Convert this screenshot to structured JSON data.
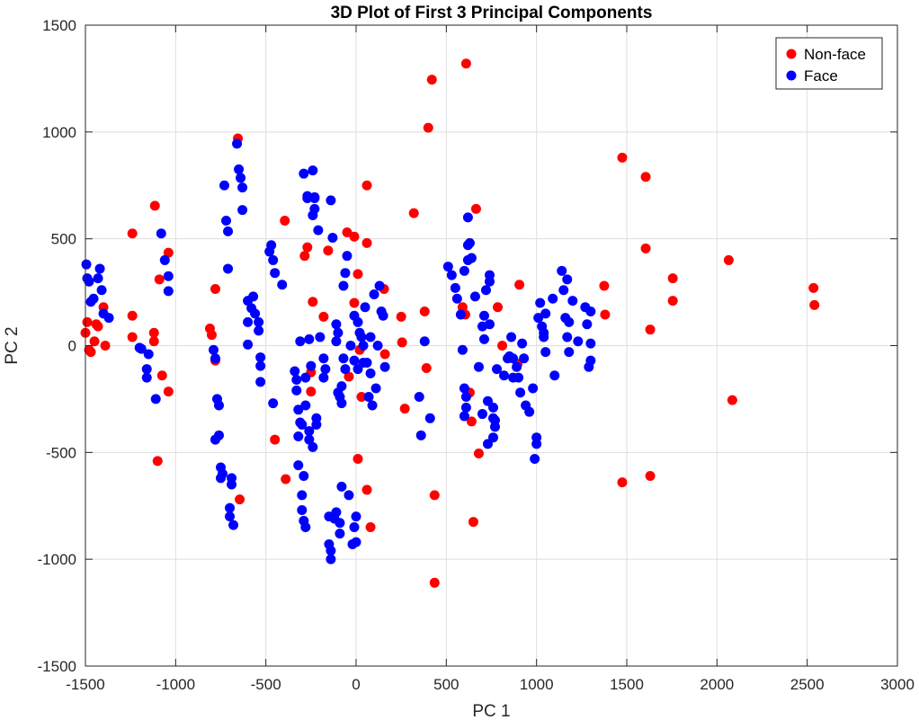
{
  "chart_data": {
    "type": "scatter",
    "title": "3D Plot of First 3 Principal Components",
    "xlabel": "PC 1",
    "ylabel": "PC 2",
    "xlim": [
      -1500,
      3000
    ],
    "ylim": [
      -1500,
      1500
    ],
    "xticks": [
      -1500,
      -1000,
      -500,
      0,
      500,
      1000,
      1500,
      2000,
      2500,
      3000
    ],
    "yticks": [
      -1500,
      -1000,
      -500,
      0,
      500,
      1000,
      1500
    ],
    "grid": true,
    "legend_position": "top-right",
    "series": [
      {
        "name": "Non-face",
        "color": "#ff0000",
        "points": [
          [
            -1500,
            60
          ],
          [
            -1490,
            110
          ],
          [
            -1480,
            -20
          ],
          [
            -1470,
            -30
          ],
          [
            -1450,
            20
          ],
          [
            -1440,
            100
          ],
          [
            -1430,
            90
          ],
          [
            -1400,
            180
          ],
          [
            -1390,
            0
          ],
          [
            -1240,
            525
          ],
          [
            -1240,
            140
          ],
          [
            -1240,
            40
          ],
          [
            -1115,
            655
          ],
          [
            -1120,
            60
          ],
          [
            -1120,
            20
          ],
          [
            -1100,
            -540
          ],
          [
            -1090,
            310
          ],
          [
            -1075,
            -140
          ],
          [
            -1040,
            435
          ],
          [
            -1040,
            -215
          ],
          [
            -810,
            80
          ],
          [
            -800,
            50
          ],
          [
            -780,
            265
          ],
          [
            -780,
            -70
          ],
          [
            -655,
            970
          ],
          [
            -645,
            -720
          ],
          [
            -450,
            -440
          ],
          [
            -395,
            585
          ],
          [
            -390,
            -625
          ],
          [
            -285,
            420
          ],
          [
            -270,
            460
          ],
          [
            -250,
            -125
          ],
          [
            -250,
            -215
          ],
          [
            -240,
            205
          ],
          [
            -180,
            135
          ],
          [
            -155,
            445
          ],
          [
            -50,
            530
          ],
          [
            -40,
            -145
          ],
          [
            -10,
            200
          ],
          [
            -10,
            510
          ],
          [
            10,
            335
          ],
          [
            10,
            -530
          ],
          [
            20,
            -20
          ],
          [
            30,
            -240
          ],
          [
            60,
            480
          ],
          [
            60,
            750
          ],
          [
            60,
            -675
          ],
          [
            80,
            -850
          ],
          [
            155,
            265
          ],
          [
            160,
            -40
          ],
          [
            250,
            135
          ],
          [
            255,
            15
          ],
          [
            270,
            -295
          ],
          [
            320,
            620
          ],
          [
            380,
            160
          ],
          [
            390,
            -105
          ],
          [
            400,
            1020
          ],
          [
            420,
            1245
          ],
          [
            435,
            -700
          ],
          [
            435,
            -1110
          ],
          [
            590,
            180
          ],
          [
            605,
            145
          ],
          [
            610,
            1320
          ],
          [
            630,
            -220
          ],
          [
            640,
            -355
          ],
          [
            650,
            -825
          ],
          [
            665,
            640
          ],
          [
            680,
            -505
          ],
          [
            785,
            180
          ],
          [
            810,
            0
          ],
          [
            895,
            -85
          ],
          [
            905,
            285
          ],
          [
            1375,
            280
          ],
          [
            1380,
            145
          ],
          [
            1475,
            880
          ],
          [
            1475,
            -640
          ],
          [
            1605,
            790
          ],
          [
            1605,
            455
          ],
          [
            1630,
            75
          ],
          [
            1630,
            -610
          ],
          [
            1755,
            315
          ],
          [
            1755,
            210
          ],
          [
            2065,
            400
          ],
          [
            2085,
            -255
          ],
          [
            2535,
            270
          ],
          [
            2540,
            190
          ]
        ]
      },
      {
        "name": "Face",
        "color": "#0000ff",
        "points": [
          [
            -1495,
            380
          ],
          [
            -1490,
            315
          ],
          [
            -1480,
            300
          ],
          [
            -1470,
            205
          ],
          [
            -1455,
            220
          ],
          [
            -1430,
            315
          ],
          [
            -1420,
            360
          ],
          [
            -1410,
            260
          ],
          [
            -1400,
            150
          ],
          [
            -1370,
            130
          ],
          [
            -1200,
            -10
          ],
          [
            -1190,
            -15
          ],
          [
            -1160,
            -110
          ],
          [
            -1160,
            -150
          ],
          [
            -1150,
            -40
          ],
          [
            -1110,
            -250
          ],
          [
            -1080,
            525
          ],
          [
            -1060,
            400
          ],
          [
            -1040,
            325
          ],
          [
            -1040,
            255
          ],
          [
            -790,
            -20
          ],
          [
            -780,
            -60
          ],
          [
            -780,
            -440
          ],
          [
            -770,
            -250
          ],
          [
            -760,
            -280
          ],
          [
            -760,
            -420
          ],
          [
            -750,
            -570
          ],
          [
            -750,
            -620
          ],
          [
            -740,
            -600
          ],
          [
            -730,
            750
          ],
          [
            -720,
            585
          ],
          [
            -710,
            535
          ],
          [
            -710,
            360
          ],
          [
            -700,
            -760
          ],
          [
            -700,
            -800
          ],
          [
            -690,
            -620
          ],
          [
            -690,
            -650
          ],
          [
            -680,
            -840
          ],
          [
            -660,
            945
          ],
          [
            -650,
            825
          ],
          [
            -640,
            785
          ],
          [
            -630,
            740
          ],
          [
            -630,
            635
          ],
          [
            -600,
            210
          ],
          [
            -600,
            110
          ],
          [
            -600,
            5
          ],
          [
            -580,
            175
          ],
          [
            -570,
            230
          ],
          [
            -560,
            150
          ],
          [
            -540,
            110
          ],
          [
            -540,
            70
          ],
          [
            -530,
            -55
          ],
          [
            -530,
            -95
          ],
          [
            -530,
            -170
          ],
          [
            -480,
            440
          ],
          [
            -470,
            470
          ],
          [
            -460,
            400
          ],
          [
            -460,
            -270
          ],
          [
            -450,
            340
          ],
          [
            -410,
            285
          ],
          [
            -340,
            -120
          ],
          [
            -330,
            -160
          ],
          [
            -330,
            -210
          ],
          [
            -320,
            -300
          ],
          [
            -320,
            -425
          ],
          [
            -320,
            -560
          ],
          [
            -310,
            -360
          ],
          [
            -310,
            20
          ],
          [
            -300,
            -370
          ],
          [
            -300,
            -700
          ],
          [
            -300,
            -770
          ],
          [
            -290,
            805
          ],
          [
            -290,
            -610
          ],
          [
            -290,
            -820
          ],
          [
            -280,
            -150
          ],
          [
            -280,
            -280
          ],
          [
            -280,
            -850
          ],
          [
            -270,
            690
          ],
          [
            -270,
            700
          ],
          [
            -260,
            -400
          ],
          [
            -260,
            -440
          ],
          [
            -260,
            30
          ],
          [
            -250,
            -95
          ],
          [
            -240,
            820
          ],
          [
            -240,
            610
          ],
          [
            -240,
            -475
          ],
          [
            -230,
            695
          ],
          [
            -230,
            690
          ],
          [
            -230,
            640
          ],
          [
            -220,
            -340
          ],
          [
            -220,
            -370
          ],
          [
            -210,
            540
          ],
          [
            -200,
            40
          ],
          [
            -180,
            -60
          ],
          [
            -180,
            -150
          ],
          [
            -170,
            -110
          ],
          [
            -150,
            -930
          ],
          [
            -150,
            -800
          ],
          [
            -140,
            680
          ],
          [
            -140,
            -960
          ],
          [
            -140,
            -1000
          ],
          [
            -130,
            505
          ],
          [
            -120,
            -810
          ],
          [
            -110,
            100
          ],
          [
            -110,
            20
          ],
          [
            -110,
            -780
          ],
          [
            -100,
            60
          ],
          [
            -100,
            -220
          ],
          [
            -90,
            -240
          ],
          [
            -90,
            -830
          ],
          [
            -90,
            -880
          ],
          [
            -80,
            -190
          ],
          [
            -80,
            -270
          ],
          [
            -80,
            -660
          ],
          [
            -70,
            280
          ],
          [
            -70,
            -60
          ],
          [
            -60,
            340
          ],
          [
            -60,
            -110
          ],
          [
            -50,
            420
          ],
          [
            -40,
            -700
          ],
          [
            -30,
            0
          ],
          [
            -20,
            -930
          ],
          [
            -10,
            -850
          ],
          [
            -10,
            -70
          ],
          [
            -10,
            140
          ],
          [
            0,
            -800
          ],
          [
            0,
            -920
          ],
          [
            10,
            110
          ],
          [
            10,
            -110
          ],
          [
            20,
            60
          ],
          [
            30,
            40
          ],
          [
            40,
            0
          ],
          [
            40,
            -80
          ],
          [
            50,
            180
          ],
          [
            60,
            -80
          ],
          [
            70,
            -240
          ],
          [
            80,
            40
          ],
          [
            80,
            -130
          ],
          [
            90,
            -280
          ],
          [
            100,
            240
          ],
          [
            110,
            -200
          ],
          [
            120,
            0
          ],
          [
            130,
            280
          ],
          [
            140,
            160
          ],
          [
            150,
            140
          ],
          [
            160,
            -100
          ],
          [
            350,
            -240
          ],
          [
            360,
            -420
          ],
          [
            380,
            20
          ],
          [
            410,
            -340
          ],
          [
            510,
            370
          ],
          [
            530,
            330
          ],
          [
            550,
            270
          ],
          [
            560,
            220
          ],
          [
            580,
            145
          ],
          [
            590,
            -20
          ],
          [
            600,
            -200
          ],
          [
            600,
            -330
          ],
          [
            600,
            350
          ],
          [
            610,
            -240
          ],
          [
            610,
            -290
          ],
          [
            620,
            600
          ],
          [
            620,
            400
          ],
          [
            620,
            470
          ],
          [
            630,
            480
          ],
          [
            640,
            410
          ],
          [
            660,
            230
          ],
          [
            680,
            -100
          ],
          [
            700,
            90
          ],
          [
            700,
            -320
          ],
          [
            710,
            30
          ],
          [
            710,
            140
          ],
          [
            720,
            260
          ],
          [
            730,
            -260
          ],
          [
            730,
            -460
          ],
          [
            740,
            300
          ],
          [
            740,
            330
          ],
          [
            740,
            100
          ],
          [
            760,
            -290
          ],
          [
            760,
            -340
          ],
          [
            760,
            -430
          ],
          [
            770,
            -350
          ],
          [
            770,
            -380
          ],
          [
            780,
            -110
          ],
          [
            820,
            -140
          ],
          [
            840,
            -60
          ],
          [
            850,
            -50
          ],
          [
            860,
            40
          ],
          [
            870,
            -150
          ],
          [
            870,
            -60
          ],
          [
            890,
            -100
          ],
          [
            900,
            -150
          ],
          [
            910,
            -220
          ],
          [
            920,
            10
          ],
          [
            930,
            -60
          ],
          [
            940,
            -280
          ],
          [
            960,
            -310
          ],
          [
            980,
            -200
          ],
          [
            990,
            -530
          ],
          [
            1000,
            -430
          ],
          [
            1000,
            -460
          ],
          [
            1010,
            130
          ],
          [
            1020,
            200
          ],
          [
            1030,
            90
          ],
          [
            1040,
            60
          ],
          [
            1040,
            40
          ],
          [
            1050,
            -30
          ],
          [
            1050,
            150
          ],
          [
            1090,
            220
          ],
          [
            1100,
            -140
          ],
          [
            1140,
            350
          ],
          [
            1150,
            260
          ],
          [
            1160,
            130
          ],
          [
            1170,
            40
          ],
          [
            1170,
            310
          ],
          [
            1180,
            -30
          ],
          [
            1180,
            110
          ],
          [
            1200,
            210
          ],
          [
            1230,
            20
          ],
          [
            1270,
            180
          ],
          [
            1280,
            100
          ],
          [
            1290,
            -100
          ],
          [
            1300,
            -70
          ],
          [
            1300,
            10
          ],
          [
            1300,
            160
          ]
        ]
      }
    ]
  }
}
